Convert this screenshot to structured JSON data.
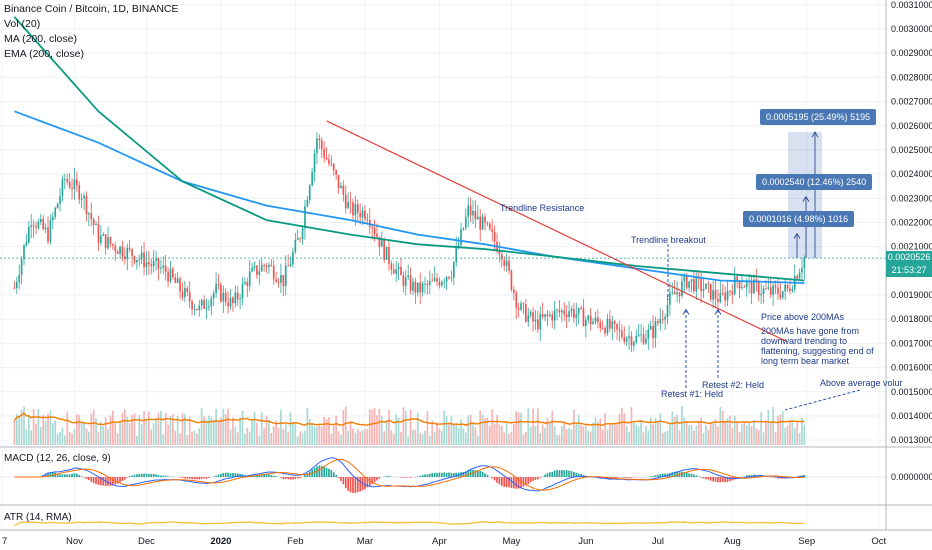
{
  "header": {
    "title": "Binance Coin / Bitcoin, 1D, BINANCE",
    "studies": [
      "Vol (20)",
      "MA (200, close)",
      "EMA (200, close)"
    ]
  },
  "price_axis": {
    "labels": [
      "0.0031000",
      "0.0030000",
      "0.0029000",
      "0.0028000",
      "0.0027000",
      "0.0026000",
      "0.0025000",
      "0.0024000",
      "0.0023000",
      "0.0022000",
      "0.0021000",
      "0.0019000",
      "0.0018000",
      "0.0017000",
      "0.0016000",
      "0.0015000",
      "0.0014000",
      "0.0013000"
    ],
    "last_price": "0.0020526",
    "countdown": "21:53:27"
  },
  "time_axis": {
    "labels": [
      "7",
      "Nov",
      "Dec",
      "2020",
      "Feb",
      "Mar",
      "Apr",
      "May",
      "Jun",
      "Jul",
      "Aug",
      "Sep",
      "Oct"
    ]
  },
  "panes": {
    "macd_label": "MACD (12, 26, close, 9)",
    "macd_zero": "0.0000000",
    "atr_label": "ATR (14, RMA)"
  },
  "annotations": {
    "trendline_resistance": "Trendline Resistance",
    "trendline_breakout": "Trendline breakout",
    "price_above": "Price above 200MAs",
    "mas_flattening": [
      "200MAs have gone from",
      "downward trending to",
      "flattening, suggesting end of",
      "long term bear market"
    ],
    "retest1": "Retest #1: Held",
    "retest2": "Retest #2: Held",
    "above_avg_volume": "Above average volur"
  },
  "measures": [
    "0.0005195 (25.49%) 5195",
    "0.0002540 (12.46%) 2540",
    "0.0001016 (4.98%) 1016"
  ],
  "colors": {
    "up": "#26a69a",
    "down": "#ef5350",
    "ma": "#2196f3",
    "ema": "#089981",
    "trendline": "#e53935",
    "vol_ma": "#f57c00",
    "atr": "#f5c242",
    "macd_line": "#2962ff",
    "signal_line": "#ff6d00",
    "measure_bg": "#4a78b5",
    "axis_text": "#131722"
  },
  "chart_data": {
    "type": "candlestick",
    "symbol": "BNB/BTC",
    "interval": "1D",
    "price_range": [
      0.00128,
      0.00312
    ],
    "close_path": [
      {
        "x": "2019-10-07",
        "y": 0.00193
      },
      {
        "x": "2019-10-14",
        "y": 0.00222
      },
      {
        "x": "2019-10-21",
        "y": 0.00215
      },
      {
        "x": "2019-10-28",
        "y": 0.00238
      },
      {
        "x": "2019-11-04",
        "y": 0.00232
      },
      {
        "x": "2019-11-11",
        "y": 0.00214
      },
      {
        "x": "2019-11-18",
        "y": 0.0021
      },
      {
        "x": "2019-11-25",
        "y": 0.00207
      },
      {
        "x": "2019-12-02",
        "y": 0.00203
      },
      {
        "x": "2019-12-09",
        "y": 0.002
      },
      {
        "x": "2019-12-16",
        "y": 0.00191
      },
      {
        "x": "2019-12-23",
        "y": 0.00184
      },
      {
        "x": "2019-12-30",
        "y": 0.00192
      },
      {
        "x": "2020-01-06",
        "y": 0.00186
      },
      {
        "x": "2020-01-13",
        "y": 0.00198
      },
      {
        "x": "2020-01-20",
        "y": 0.00203
      },
      {
        "x": "2020-01-27",
        "y": 0.00196
      },
      {
        "x": "2020-02-03",
        "y": 0.00215
      },
      {
        "x": "2020-02-10",
        "y": 0.00255
      },
      {
        "x": "2020-02-17",
        "y": 0.0024
      },
      {
        "x": "2020-02-24",
        "y": 0.00225
      },
      {
        "x": "2020-03-02",
        "y": 0.00224
      },
      {
        "x": "2020-03-09",
        "y": 0.00208
      },
      {
        "x": "2020-03-16",
        "y": 0.00197
      },
      {
        "x": "2020-03-23",
        "y": 0.00192
      },
      {
        "x": "2020-03-30",
        "y": 0.00195
      },
      {
        "x": "2020-04-06",
        "y": 0.002
      },
      {
        "x": "2020-04-13",
        "y": 0.00225
      },
      {
        "x": "2020-04-20",
        "y": 0.00218
      },
      {
        "x": "2020-04-27",
        "y": 0.00208
      },
      {
        "x": "2020-05-04",
        "y": 0.00185
      },
      {
        "x": "2020-05-11",
        "y": 0.00178
      },
      {
        "x": "2020-05-18",
        "y": 0.00182
      },
      {
        "x": "2020-05-25",
        "y": 0.00184
      },
      {
        "x": "2020-06-01",
        "y": 0.0018
      },
      {
        "x": "2020-06-08",
        "y": 0.00178
      },
      {
        "x": "2020-06-15",
        "y": 0.00174
      },
      {
        "x": "2020-06-22",
        "y": 0.00172
      },
      {
        "x": "2020-06-29",
        "y": 0.00175
      },
      {
        "x": "2020-07-06",
        "y": 0.00188
      },
      {
        "x": "2020-07-13",
        "y": 0.00196
      },
      {
        "x": "2020-07-20",
        "y": 0.00193
      },
      {
        "x": "2020-07-27",
        "y": 0.00188
      },
      {
        "x": "2020-08-03",
        "y": 0.00196
      },
      {
        "x": "2020-08-10",
        "y": 0.00193
      },
      {
        "x": "2020-08-17",
        "y": 0.00191
      },
      {
        "x": "2020-08-24",
        "y": 0.00192
      },
      {
        "x": "2020-08-31",
        "y": 0.002053
      }
    ],
    "ma200_path": [
      {
        "x": "2019-10-07",
        "y": 0.00266
      },
      {
        "x": "2019-11-11",
        "y": 0.00253
      },
      {
        "x": "2019-12-16",
        "y": 0.00237
      },
      {
        "x": "2020-01-20",
        "y": 0.00227
      },
      {
        "x": "2020-02-24",
        "y": 0.00221
      },
      {
        "x": "2020-03-23",
        "y": 0.00215
      },
      {
        "x": "2020-04-20",
        "y": 0.00211
      },
      {
        "x": "2020-05-18",
        "y": 0.00206
      },
      {
        "x": "2020-06-22",
        "y": 0.00201
      },
      {
        "x": "2020-07-27",
        "y": 0.00196
      },
      {
        "x": "2020-08-31",
        "y": 0.00195
      }
    ],
    "ema200_path": [
      {
        "x": "2019-10-07",
        "y": 0.00305
      },
      {
        "x": "2019-11-11",
        "y": 0.00266
      },
      {
        "x": "2019-12-16",
        "y": 0.00237
      },
      {
        "x": "2020-01-20",
        "y": 0.00221
      },
      {
        "x": "2020-02-24",
        "y": 0.00215
      },
      {
        "x": "2020-03-23",
        "y": 0.00211
      },
      {
        "x": "2020-04-20",
        "y": 0.00209
      },
      {
        "x": "2020-05-18",
        "y": 0.00206
      },
      {
        "x": "2020-06-22",
        "y": 0.00202
      },
      {
        "x": "2020-07-27",
        "y": 0.00199
      },
      {
        "x": "2020-08-31",
        "y": 0.00196
      }
    ],
    "trendline": [
      {
        "x": "2020-02-14",
        "y": 0.00262
      },
      {
        "x": "2020-08-07",
        "y": 0.00177
      }
    ],
    "measure_targets": [
      0.002574,
      0.002307,
      0.002154
    ],
    "retest_levels": [
      0.00183,
      0.00181
    ]
  }
}
